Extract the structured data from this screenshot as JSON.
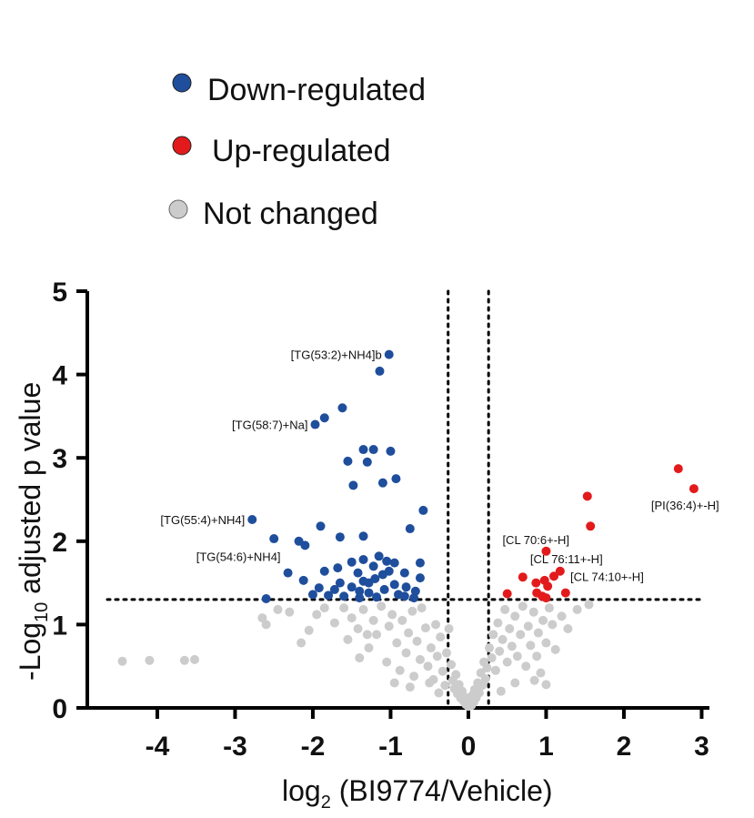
{
  "chart_data": {
    "type": "scatter",
    "title": "",
    "xlabel_main": "log",
    "xlabel_sub": "2",
    "xlabel_rest": " (BI9774/Vehicle)",
    "ylabel_main": "-Log",
    "ylabel_sub": "10",
    "ylabel_rest": " adjusted p value",
    "xlim": [
      -4.9,
      3.1
    ],
    "ylim": [
      0,
      5
    ],
    "xticks": [
      -4,
      -3,
      -2,
      -1,
      0,
      1,
      2,
      3
    ],
    "xtick_labels": [
      "-4",
      "-3",
      "-2",
      "-1",
      "0",
      "1",
      "2",
      "3"
    ],
    "yticks": [
      0,
      1,
      2,
      3,
      4,
      5
    ],
    "ytick_labels": [
      "0",
      "1",
      "2",
      "3",
      "4",
      "5"
    ],
    "thresholds": {
      "x": [
        -0.26,
        0.26
      ],
      "y": 1.3
    },
    "legend": [
      {
        "label": "Down-regulated",
        "color": "#1f4e9c"
      },
      {
        "label": "Up-regulated",
        "color": "#e31a1c"
      },
      {
        "label": "Not changed",
        "color": "#cccccc"
      }
    ],
    "colors": {
      "down": "#1f4e9c",
      "up": "#e31a1c",
      "ns": "#cccccc",
      "ns_stroke": "#999999"
    },
    "series": [
      {
        "name": "Down-regulated",
        "points": [
          [
            -1.02,
            4.24
          ],
          [
            -1.14,
            4.04
          ],
          [
            -1.62,
            3.6
          ],
          [
            -1.85,
            3.48
          ],
          [
            -1.97,
            3.4
          ],
          [
            -1.35,
            3.1
          ],
          [
            -1.22,
            3.1
          ],
          [
            -1.0,
            3.08
          ],
          [
            -1.55,
            2.96
          ],
          [
            -1.3,
            2.95
          ],
          [
            -0.93,
            2.75
          ],
          [
            -1.1,
            2.7
          ],
          [
            -1.48,
            2.67
          ],
          [
            -0.58,
            2.37
          ],
          [
            -2.78,
            2.26
          ],
          [
            -0.75,
            2.15
          ],
          [
            -1.9,
            2.18
          ],
          [
            -2.5,
            2.03
          ],
          [
            -2.18,
            2.0
          ],
          [
            -1.65,
            2.05
          ],
          [
            -1.35,
            2.06
          ],
          [
            -2.1,
            1.95
          ],
          [
            -1.15,
            1.82
          ],
          [
            -1.35,
            1.78
          ],
          [
            -1.05,
            1.76
          ],
          [
            -1.5,
            1.75
          ],
          [
            -0.95,
            1.74
          ],
          [
            -0.62,
            1.74
          ],
          [
            -1.22,
            1.7
          ],
          [
            -1.68,
            1.68
          ],
          [
            -2.32,
            1.62
          ],
          [
            -1.85,
            1.64
          ],
          [
            -1.42,
            1.62
          ],
          [
            -1.02,
            1.64
          ],
          [
            -0.82,
            1.62
          ],
          [
            -1.1,
            1.6
          ],
          [
            -1.2,
            1.55
          ],
          [
            -1.35,
            1.52
          ],
          [
            -0.62,
            1.56
          ],
          [
            -2.12,
            1.53
          ],
          [
            -1.65,
            1.5
          ],
          [
            -1.28,
            1.5
          ],
          [
            -0.95,
            1.48
          ],
          [
            -0.8,
            1.45
          ],
          [
            -1.5,
            1.45
          ],
          [
            -1.92,
            1.44
          ],
          [
            -1.72,
            1.42
          ],
          [
            -1.4,
            1.4
          ],
          [
            -1.08,
            1.42
          ],
          [
            -0.68,
            1.4
          ],
          [
            -1.28,
            1.38
          ],
          [
            -0.9,
            1.36
          ],
          [
            -2.6,
            1.31
          ],
          [
            -1.8,
            1.35
          ],
          [
            -1.6,
            1.34
          ],
          [
            -1.18,
            1.33
          ],
          [
            -0.82,
            1.34
          ],
          [
            -0.7,
            1.32
          ],
          [
            -1.4,
            1.32
          ],
          [
            -2.0,
            1.36
          ]
        ]
      },
      {
        "name": "Up-regulated",
        "points": [
          [
            2.7,
            2.87
          ],
          [
            2.9,
            2.63
          ],
          [
            1.53,
            2.54
          ],
          [
            1.57,
            2.18
          ],
          [
            1.0,
            1.88
          ],
          [
            1.18,
            1.64
          ],
          [
            1.1,
            1.58
          ],
          [
            0.7,
            1.57
          ],
          [
            0.98,
            1.53
          ],
          [
            0.87,
            1.5
          ],
          [
            1.02,
            1.46
          ],
          [
            0.88,
            1.38
          ],
          [
            0.5,
            1.37
          ],
          [
            1.25,
            1.38
          ],
          [
            0.95,
            1.34
          ],
          [
            1.0,
            1.32
          ]
        ]
      },
      {
        "name": "Not changed",
        "points": [
          [
            -4.45,
            0.56
          ],
          [
            -4.1,
            0.57
          ],
          [
            -3.65,
            0.57
          ],
          [
            -3.52,
            0.58
          ],
          [
            -2.65,
            1.08
          ],
          [
            -2.6,
            1.0
          ],
          [
            -2.15,
            0.78
          ],
          [
            -2.05,
            0.93
          ],
          [
            -1.95,
            1.12
          ],
          [
            -2.3,
            1.15
          ],
          [
            -1.85,
            1.2
          ],
          [
            -1.72,
            1.02
          ],
          [
            -1.55,
            0.82
          ],
          [
            -1.4,
            0.6
          ],
          [
            -1.42,
            0.95
          ],
          [
            -1.35,
            1.18
          ],
          [
            -1.28,
            0.72
          ],
          [
            -1.22,
            1.05
          ],
          [
            -1.18,
            0.88
          ],
          [
            -1.12,
            1.22
          ],
          [
            -1.05,
            0.55
          ],
          [
            -1.02,
            0.98
          ],
          [
            -0.98,
            1.12
          ],
          [
            -0.92,
            0.78
          ],
          [
            -0.88,
            0.45
          ],
          [
            -0.85,
            1.05
          ],
          [
            -0.8,
            0.66
          ],
          [
            -0.77,
            0.9
          ],
          [
            -0.72,
            1.16
          ],
          [
            -0.7,
            0.38
          ],
          [
            -0.66,
            0.8
          ],
          [
            -0.62,
            0.58
          ],
          [
            -0.6,
            1.2
          ],
          [
            -0.55,
            0.96
          ],
          [
            -0.52,
            0.5
          ],
          [
            -0.48,
            0.72
          ],
          [
            -0.45,
            0.34
          ],
          [
            -0.42,
            1.0
          ],
          [
            -0.4,
            0.62
          ],
          [
            -0.36,
            0.85
          ],
          [
            -0.33,
            0.44
          ],
          [
            -0.3,
            0.27
          ],
          [
            -0.28,
            0.66
          ],
          [
            -0.25,
            0.95
          ],
          [
            -0.22,
            0.52
          ],
          [
            -0.2,
            0.33
          ],
          [
            -0.18,
            0.23
          ],
          [
            -0.16,
            0.4
          ],
          [
            -0.14,
            0.17
          ],
          [
            -0.12,
            0.28
          ],
          [
            -0.1,
            0.12
          ],
          [
            -0.08,
            0.2
          ],
          [
            -0.06,
            0.08
          ],
          [
            -0.05,
            0.13
          ],
          [
            -0.03,
            0.04
          ],
          [
            -0.02,
            0.07
          ],
          [
            0.0,
            0.02
          ],
          [
            0.01,
            0.05
          ],
          [
            0.02,
            0.1
          ],
          [
            0.04,
            0.03
          ],
          [
            0.05,
            0.15
          ],
          [
            0.07,
            0.07
          ],
          [
            0.08,
            0.22
          ],
          [
            0.1,
            0.12
          ],
          [
            0.12,
            0.3
          ],
          [
            0.14,
            0.18
          ],
          [
            0.16,
            0.42
          ],
          [
            0.18,
            0.27
          ],
          [
            0.2,
            0.55
          ],
          [
            0.22,
            0.35
          ],
          [
            0.24,
            0.48
          ],
          [
            0.27,
            0.72
          ],
          [
            0.3,
            0.6
          ],
          [
            0.32,
            0.88
          ],
          [
            0.35,
            0.45
          ],
          [
            0.38,
            1.02
          ],
          [
            0.4,
            0.68
          ],
          [
            0.44,
            0.82
          ],
          [
            0.47,
            1.18
          ],
          [
            0.5,
            0.55
          ],
          [
            0.53,
            0.95
          ],
          [
            0.56,
            0.74
          ],
          [
            0.6,
            1.1
          ],
          [
            0.63,
            0.62
          ],
          [
            0.67,
            0.88
          ],
          [
            0.7,
            1.22
          ],
          [
            0.74,
            0.5
          ],
          [
            0.77,
            0.98
          ],
          [
            0.8,
            0.75
          ],
          [
            0.84,
            1.15
          ],
          [
            0.88,
            0.62
          ],
          [
            0.9,
            0.9
          ],
          [
            0.93,
            0.42
          ],
          [
            0.96,
            1.05
          ],
          [
            1.0,
            0.78
          ],
          [
            1.04,
            1.2
          ],
          [
            1.08,
            1.0
          ],
          [
            1.12,
            0.7
          ],
          [
            1.2,
            1.1
          ],
          [
            1.28,
            0.95
          ],
          [
            1.4,
            1.18
          ],
          [
            1.55,
            1.24
          ],
          [
            1.0,
            0.28
          ],
          [
            0.85,
            0.33
          ],
          [
            -0.75,
            0.25
          ],
          [
            -0.95,
            0.3
          ],
          [
            -1.6,
            1.2
          ],
          [
            -1.5,
            1.08
          ],
          [
            -1.3,
            0.88
          ],
          [
            -0.5,
            0.3
          ],
          [
            0.6,
            0.3
          ],
          [
            -2.45,
            1.18
          ],
          [
            0.42,
            0.2
          ],
          [
            -0.38,
            0.18
          ]
        ]
      }
    ],
    "annotations": [
      {
        "text": "[TG(53:2)+NH4]b",
        "x": -1.02,
        "y": 4.24,
        "anchor": "end"
      },
      {
        "text": "[TG(58:7)+Na]",
        "x": -1.97,
        "y": 3.4,
        "anchor": "end"
      },
      {
        "text": "[TG(55:4)+NH4]",
        "x": -2.78,
        "y": 2.26,
        "anchor": "end"
      },
      {
        "text": "[TG(54:6)+NH4]",
        "x": -2.18,
        "y": 1.82,
        "anchor": "end"
      },
      {
        "text": "[PI(36:4)+-H]",
        "x": 2.9,
        "y": 2.63,
        "anchor": "start"
      },
      {
        "text": "[CL 70:6+-H]",
        "x": 1.0,
        "y": 1.88,
        "anchor": "start"
      },
      {
        "text": "[CL 76:11+-H]",
        "x": 1.18,
        "y": 1.64,
        "anchor": "start"
      },
      {
        "text": "[CL 74:10+-H]",
        "x": 1.1,
        "y": 1.58,
        "anchor": "start"
      }
    ]
  }
}
